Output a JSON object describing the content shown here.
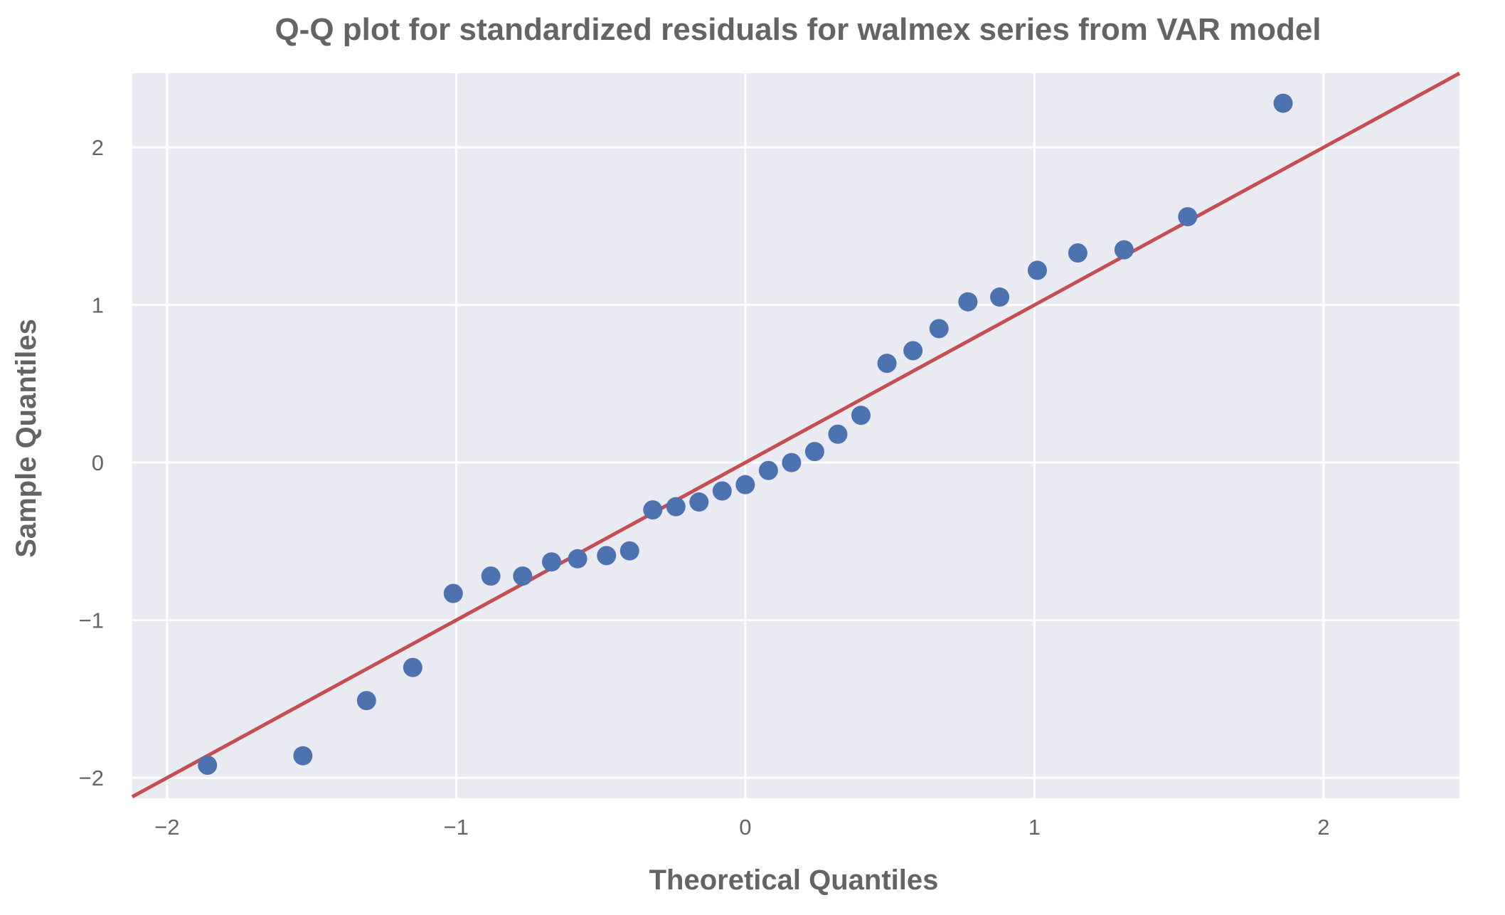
{
  "chart_data": {
    "type": "scatter",
    "title": "Q-Q plot for standardized residuals for walmex series from VAR model",
    "xlabel": "Theoretical Quantiles",
    "ylabel": "Sample Quantiles",
    "xlim": [
      -2.12,
      2.47
    ],
    "ylim": [
      -2.13,
      2.47
    ],
    "grid": true,
    "xticks": [
      -2,
      -1,
      0,
      1,
      2
    ],
    "yticks": [
      -2,
      -1,
      0,
      1,
      2
    ],
    "xtick_labels": [
      "−2",
      "−1",
      "0",
      "1",
      "2"
    ],
    "ytick_labels": [
      "−2",
      "−1",
      "0",
      "1",
      "2"
    ],
    "background_color": "#eaeaf2",
    "grid_color": "#ffffff",
    "tick_label_color": "#646464",
    "series": [
      {
        "kind": "points",
        "color": "#4c72b0",
        "x": [
          -1.86,
          -1.53,
          -1.31,
          -1.15,
          -1.01,
          -0.88,
          -0.77,
          -0.67,
          -0.58,
          -0.48,
          -0.4,
          -0.32,
          -0.24,
          -0.16,
          -0.08,
          0.0,
          0.08,
          0.16,
          0.24,
          0.32,
          0.4,
          0.49,
          0.58,
          0.67,
          0.77,
          0.88,
          1.01,
          1.15,
          1.31,
          1.53,
          1.86
        ],
        "y": [
          -1.92,
          -1.86,
          -1.51,
          -1.3,
          -0.83,
          -0.72,
          -0.72,
          -0.63,
          -0.61,
          -0.59,
          -0.56,
          -0.3,
          -0.28,
          -0.25,
          -0.18,
          -0.14,
          -0.05,
          0.0,
          0.07,
          0.18,
          0.3,
          0.63,
          0.71,
          0.85,
          1.02,
          1.05,
          1.22,
          1.33,
          1.35,
          1.56,
          2.28
        ]
      },
      {
        "kind": "reference-line",
        "color": "#c44e52",
        "x": [
          -2.12,
          2.47
        ],
        "y": [
          -2.12,
          2.47
        ]
      }
    ]
  }
}
